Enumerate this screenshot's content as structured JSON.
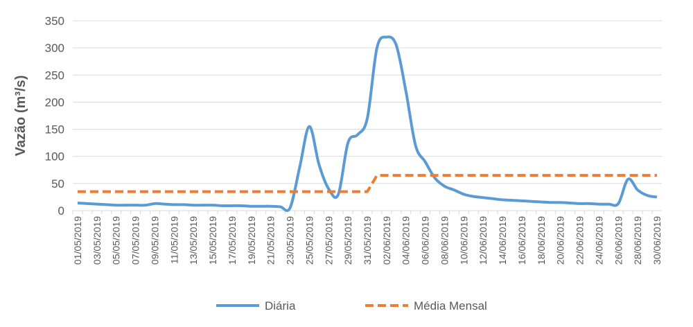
{
  "chart_data": {
    "type": "line",
    "y_label": "Vazão (m³/s)",
    "categories": [
      "01/05/2019",
      null,
      "03/05/2019",
      null,
      "05/05/2019",
      null,
      "07/05/2019",
      null,
      "09/05/2019",
      null,
      "11/05/2019",
      null,
      "13/05/2019",
      null,
      "15/05/2019",
      null,
      "17/05/2019",
      null,
      "19/05/2019",
      null,
      "21/05/2019",
      null,
      "23/05/2019",
      null,
      "25/05/2019",
      null,
      "27/05/2019",
      null,
      "29/05/2019",
      null,
      "31/05/2019",
      null,
      "02/06/2019",
      null,
      "04/06/2019",
      null,
      "06/06/2019",
      null,
      "08/06/2019",
      null,
      "10/06/2019",
      null,
      "12/06/2019",
      null,
      "14/06/2019",
      null,
      "16/06/2019",
      null,
      "18/06/2019",
      null,
      "20/06/2019",
      null,
      "22/06/2019",
      null,
      "24/06/2019",
      null,
      "26/06/2019",
      null,
      "28/06/2019",
      null,
      "30/06/2019"
    ],
    "series": [
      {
        "name": "Diária",
        "color": "#5b9bd5",
        "dash": false,
        "values": [
          14,
          13,
          12,
          11,
          10,
          10,
          10,
          10,
          13,
          12,
          11,
          11,
          10,
          10,
          10,
          9,
          9,
          9,
          8,
          8,
          8,
          7,
          5,
          80,
          155,
          85,
          40,
          30,
          125,
          140,
          170,
          300,
          320,
          305,
          220,
          120,
          90,
          60,
          45,
          38,
          30,
          26,
          24,
          22,
          20,
          19,
          18,
          17,
          16,
          15,
          15,
          14,
          13,
          13,
          12,
          12,
          13,
          58,
          38,
          28,
          25
        ]
      },
      {
        "name": "Média Mensal",
        "color": "#ed7d31",
        "dash": true,
        "values": [
          35,
          35,
          35,
          35,
          35,
          35,
          35,
          35,
          35,
          35,
          35,
          35,
          35,
          35,
          35,
          35,
          35,
          35,
          35,
          35,
          35,
          35,
          35,
          35,
          35,
          35,
          35,
          35,
          35,
          35,
          35,
          65,
          65,
          65,
          65,
          65,
          65,
          65,
          65,
          65,
          65,
          65,
          65,
          65,
          65,
          65,
          65,
          65,
          65,
          65,
          65,
          65,
          65,
          65,
          65,
          65,
          65,
          65,
          65,
          65,
          65
        ]
      }
    ],
    "ylim": [
      0,
      350
    ],
    "yticks": [
      0,
      50,
      100,
      150,
      200,
      250,
      300,
      350
    ],
    "grid": true,
    "legend": "bottom"
  }
}
